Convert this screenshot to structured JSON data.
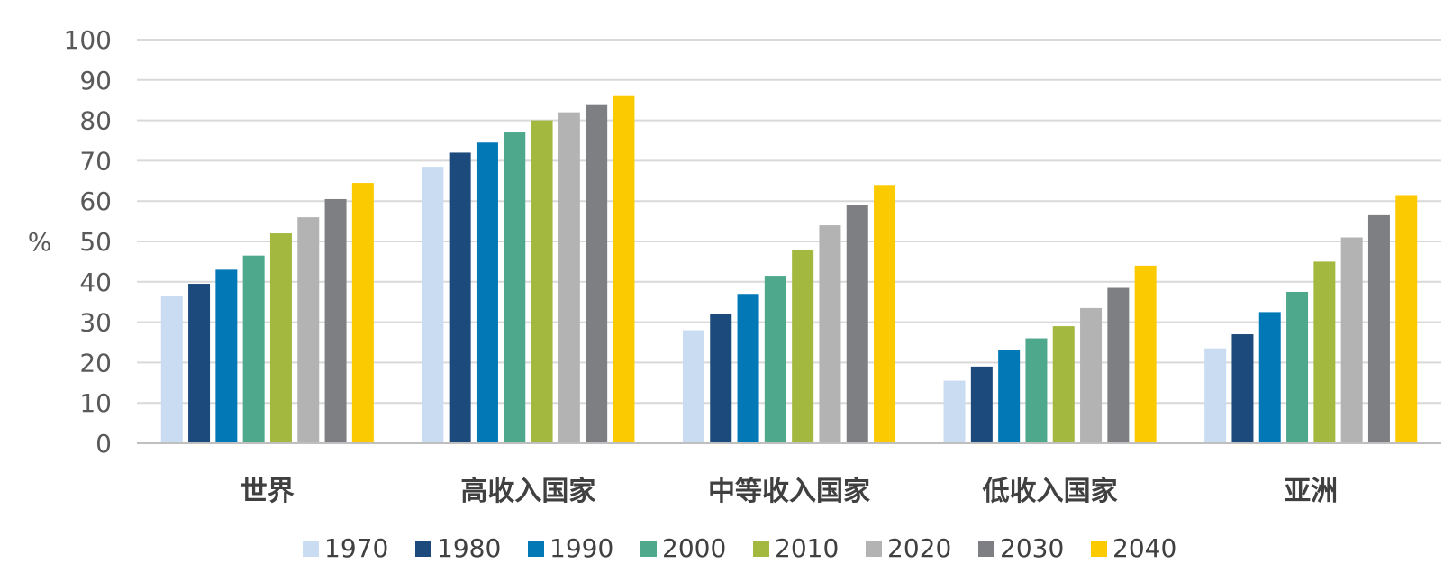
{
  "chart_data": {
    "type": "bar",
    "ylabel": "%",
    "ylim": [
      0,
      100
    ],
    "yticks": [
      0,
      10,
      20,
      30,
      40,
      50,
      60,
      70,
      80,
      90,
      100
    ],
    "grid": true,
    "legend_position": "bottom",
    "categories": [
      "世界",
      "高收入国家",
      "中等收入国家",
      "低收入国家",
      "亚洲"
    ],
    "series": [
      {
        "name": "1970",
        "color": "#c9dcf2",
        "values": [
          36.5,
          68.5,
          28,
          15.5,
          23.5
        ]
      },
      {
        "name": "1980",
        "color": "#1c4a7c",
        "values": [
          39.5,
          72,
          32,
          19,
          27
        ]
      },
      {
        "name": "1990",
        "color": "#0278b6",
        "values": [
          43,
          74.5,
          37,
          23,
          32.5
        ]
      },
      {
        "name": "2000",
        "color": "#4ea88c",
        "values": [
          46.5,
          77,
          41.5,
          26,
          37.5
        ]
      },
      {
        "name": "2010",
        "color": "#a3b83f",
        "values": [
          52,
          80,
          48,
          29,
          45
        ]
      },
      {
        "name": "2020",
        "color": "#b3b3b3",
        "values": [
          56,
          82,
          54,
          33.5,
          51
        ]
      },
      {
        "name": "2030",
        "color": "#7d7f82",
        "values": [
          60.5,
          84,
          59,
          38.5,
          56.5
        ]
      },
      {
        "name": "2040",
        "color": "#fcca00",
        "values": [
          64.5,
          86,
          64,
          44,
          61.5
        ]
      }
    ]
  }
}
